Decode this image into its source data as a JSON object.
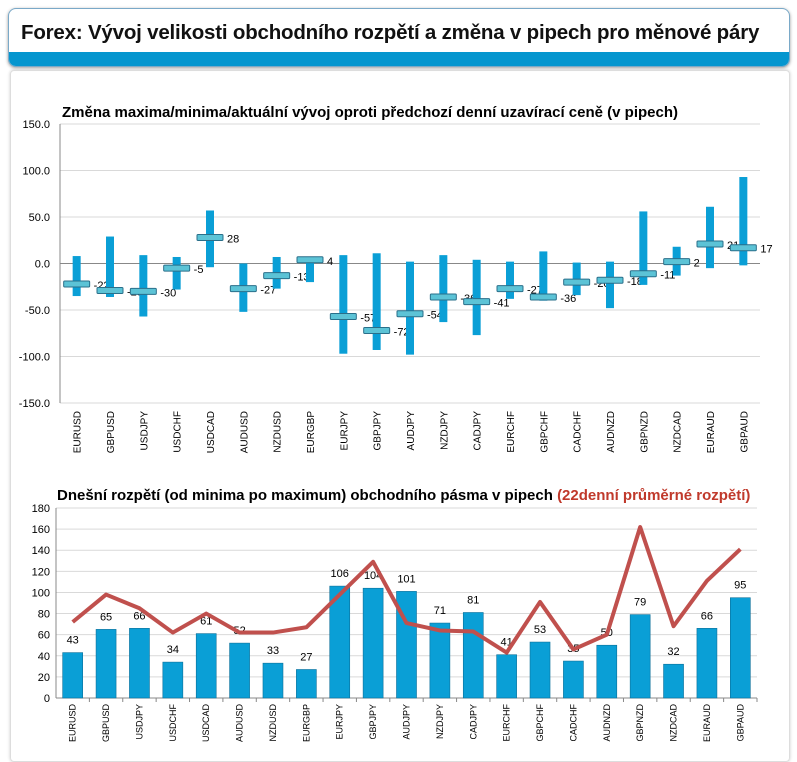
{
  "header": {
    "title": "Forex: Vývoj velikosti obchodního rozpětí a změna v pipech pro měnové páry"
  },
  "colors": {
    "accent": "#0596cf",
    "bar": "#0a9fd6",
    "line": "#c0504d"
  },
  "chart_data": [
    {
      "type": "bar",
      "subtype": "high-low-close",
      "title": "Změna maxima/minima/aktuální vývoj oproti předchozí denní uzavírací ceně (v pipech)",
      "ylim": [
        -150,
        150
      ],
      "yticks": [
        "150.0",
        "100.0",
        "50.0",
        "0.0",
        "-50.0",
        "-100.0",
        "-150.0"
      ],
      "categories": [
        "EURUSD",
        "GBPUSD",
        "USDJPY",
        "USDCHF",
        "USDCAD",
        "AUDUSD",
        "NZDUSD",
        "EURGBP",
        "EURJPY",
        "GBPJPY",
        "AUDJPY",
        "NZDJPY",
        "CADJPY",
        "EURCHF",
        "GBPCHF",
        "CADCHF",
        "AUDNZD",
        "GBPNZD",
        "NZDCAD",
        "EURAUD",
        "GBPAUD"
      ],
      "high": [
        8,
        29,
        9,
        7,
        57,
        0,
        7,
        6,
        9,
        11,
        2,
        9,
        4,
        2,
        13,
        1,
        2,
        56,
        18,
        61,
        93
      ],
      "low": [
        -35,
        -36,
        -57,
        -28,
        -4,
        -52,
        -27,
        -20,
        -97,
        -93,
        -98,
        -63,
        -77,
        -38,
        -40,
        -34,
        -48,
        -23,
        -13,
        -5,
        -2
      ],
      "current": [
        -22,
        -29,
        -30,
        -5,
        28,
        -27,
        -13,
        4,
        -57,
        -72,
        -54,
        -36,
        -41,
        -27,
        -36,
        -20,
        -18,
        -11,
        2,
        21,
        17
      ]
    },
    {
      "type": "bar",
      "subtype": "bar+line",
      "title": "Dnešní rozpětí (od minima po maximum) obchodního pásma v pipech",
      "title_red": "(22denní průměrné rozpětí)",
      "ylim": [
        0,
        180
      ],
      "yticks": [
        "180",
        "160",
        "140",
        "120",
        "100",
        "80",
        "60",
        "40",
        "20",
        "0"
      ],
      "categories": [
        "EURUSD",
        "GBPUSD",
        "USDJPY",
        "USDCHF",
        "USDCAD",
        "AUDUSD",
        "NZDUSD",
        "EURGBP",
        "EURJPY",
        "GBPJPY",
        "AUDJPY",
        "NZDJPY",
        "CADJPY",
        "EURCHF",
        "GBPCHF",
        "CADCHF",
        "AUDNZD",
        "GBPNZD",
        "NZDCAD",
        "EURAUD",
        "GBPAUD"
      ],
      "series": [
        {
          "name": "Dnešní rozpětí",
          "type": "bar",
          "values": [
            43,
            65,
            66,
            34,
            61,
            52,
            33,
            27,
            106,
            104,
            101,
            71,
            81,
            41,
            53,
            35,
            50,
            79,
            32,
            66,
            95
          ]
        },
        {
          "name": "22denní průměrné rozpětí",
          "type": "line",
          "values": [
            72,
            98,
            85,
            62,
            80,
            62,
            62,
            67,
            98,
            129,
            71,
            64,
            63,
            43,
            91,
            46,
            60,
            162,
            68,
            111,
            141
          ]
        }
      ]
    }
  ]
}
